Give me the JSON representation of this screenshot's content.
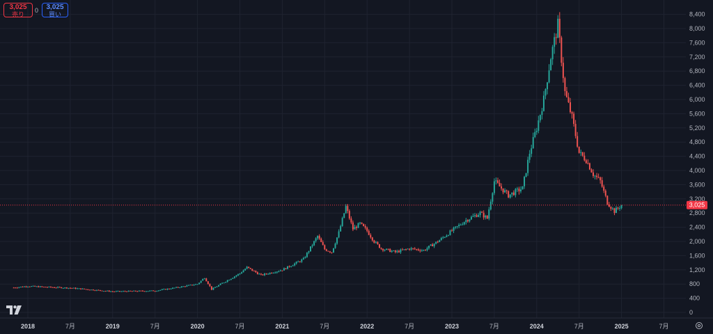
{
  "trade_panel": {
    "sell_price": "3,025",
    "sell_label": "売り",
    "spread": "0",
    "buy_price": "3,025",
    "buy_label": "買い"
  },
  "colors": {
    "background": "#131722",
    "up": "#26a69a",
    "down": "#ef5350",
    "price_line": "#f23645",
    "grid": "#1f2330",
    "axis_text": "#b2b5be"
  },
  "chart_data": {
    "type": "candlestick",
    "title": "",
    "xlabel": "",
    "ylabel": "",
    "y_ticks": [
      0,
      400,
      800,
      1200,
      1600,
      2000,
      2400,
      2800,
      3200,
      3600,
      4000,
      4400,
      4800,
      5200,
      5600,
      6000,
      6400,
      6800,
      7200,
      7600,
      8000,
      8400
    ],
    "y_tick_labels": [
      "0",
      "400",
      "800",
      "1,200",
      "1,600",
      "2,000",
      "2,400",
      "2,800",
      "3,200",
      "3,600",
      "4,000",
      "4,400",
      "4,800",
      "5,200",
      "5,600",
      "6,000",
      "6,400",
      "6,800",
      "7,200",
      "7,600",
      "8,000",
      "8,400"
    ],
    "x_ticks": [
      "2018-01",
      "2018-07",
      "2019-01",
      "2019-07",
      "2020-01",
      "2020-07",
      "2021-01",
      "2021-07",
      "2022-01",
      "2022-07",
      "2023-01",
      "2023-07",
      "2024-01",
      "2024-07",
      "2025-01",
      "2025-07"
    ],
    "x_tick_labels": [
      "2018",
      "7月",
      "2019",
      "7月",
      "2020",
      "7月",
      "2021",
      "7月",
      "2022",
      "7月",
      "2023",
      "7月",
      "2024",
      "7月",
      "2025",
      "7月"
    ],
    "last_price": 3025,
    "last_price_label": "3,025",
    "grid": true,
    "price_path": [
      [
        "2017-11",
        700
      ],
      [
        "2018-01",
        740
      ],
      [
        "2018-03",
        720
      ],
      [
        "2018-07",
        690
      ],
      [
        "2018-10",
        640
      ],
      [
        "2019-01",
        590
      ],
      [
        "2019-04",
        600
      ],
      [
        "2019-07",
        610
      ],
      [
        "2019-10",
        700
      ],
      [
        "2020-01",
        800
      ],
      [
        "2020-02",
        980
      ],
      [
        "2020-03",
        650
      ],
      [
        "2020-05",
        880
      ],
      [
        "2020-07",
        1100
      ],
      [
        "2020-08",
        1270
      ],
      [
        "2020-10",
        1050
      ],
      [
        "2021-01",
        1200
      ],
      [
        "2021-04",
        1500
      ],
      [
        "2021-06",
        2150
      ],
      [
        "2021-07",
        1780
      ],
      [
        "2021-08",
        1700
      ],
      [
        "2021-09",
        2250
      ],
      [
        "2021-10",
        2980
      ],
      [
        "2021-11",
        2350
      ],
      [
        "2021-12",
        2500
      ],
      [
        "2022-01",
        2300
      ],
      [
        "2022-02",
        2000
      ],
      [
        "2022-03",
        1800
      ],
      [
        "2022-05",
        1700
      ],
      [
        "2022-07",
        1800
      ],
      [
        "2022-09",
        1750
      ],
      [
        "2022-11",
        2000
      ],
      [
        "2023-01",
        2300
      ],
      [
        "2023-03",
        2600
      ],
      [
        "2023-05",
        2800
      ],
      [
        "2023-06",
        2650
      ],
      [
        "2023-07",
        3700
      ],
      [
        "2023-09",
        3300
      ],
      [
        "2023-11",
        3500
      ],
      [
        "2023-12",
        4500
      ],
      [
        "2024-01",
        5200
      ],
      [
        "2024-02",
        6000
      ],
      [
        "2024-03",
        7200
      ],
      [
        "2024-04",
        8100
      ],
      [
        "2024-05",
        6200
      ],
      [
        "2024-06",
        5500
      ],
      [
        "2024-07",
        4500
      ],
      [
        "2024-08",
        4300
      ],
      [
        "2024-09",
        3900
      ],
      [
        "2024-10",
        3700
      ],
      [
        "2024-11",
        3100
      ],
      [
        "2024-12",
        2850
      ],
      [
        "2025-01",
        3025
      ]
    ]
  }
}
